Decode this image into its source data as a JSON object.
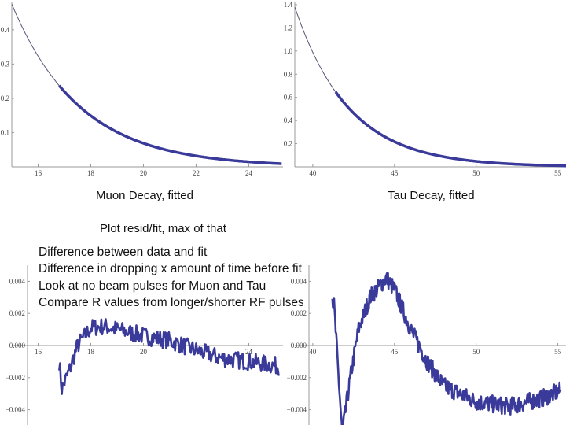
{
  "captions": {
    "muon": "Muon Decay, fitted",
    "tau": "Tau Decay, fitted",
    "plot_note": "Plot resid/fit, max of that"
  },
  "notes": [
    "Difference between data and fit",
    "Difference in dropping x amount of time before fit",
    "Look at no beam pulses for Muon and Tau",
    "Compare R values from longer/shorter RF pulses"
  ],
  "colors": {
    "data": "#3a3a9a",
    "fit": "#555577",
    "axis": "#999999"
  },
  "chart_data": [
    {
      "type": "line",
      "caption": "Muon Decay, fitted",
      "xlim": [
        15,
        25.3
      ],
      "ylim": [
        0,
        0.48
      ],
      "xticks": [
        "16",
        "18",
        "20",
        "22",
        "24"
      ],
      "xtick_values": [
        16,
        18,
        20,
        22,
        24
      ],
      "yticks": [
        "0.1",
        "0.2",
        "0.3",
        "0.4"
      ],
      "ytick_values": [
        0.1,
        0.2,
        0.3,
        0.4
      ],
      "fit": {
        "amplitude_at_xmin": 0.475,
        "decay_constant": 2.59
      },
      "data_range": [
        16.8,
        25.3
      ]
    },
    {
      "type": "line",
      "caption": "Tau Decay, fitted",
      "xlim": [
        38.9,
        55.5
      ],
      "ylim": [
        0,
        1.42
      ],
      "xticks": [
        "40",
        "45",
        "50",
        "55"
      ],
      "xtick_values": [
        40,
        45,
        50,
        55
      ],
      "yticks": [
        "0.2",
        "0.4",
        "0.6",
        "0.8",
        "1.0",
        "1.2",
        "1.4"
      ],
      "ytick_values": [
        0.2,
        0.4,
        0.6,
        0.8,
        1.0,
        1.2,
        1.4
      ],
      "fit": {
        "amplitude_at_xmin": 1.38,
        "decay_constant": 3.3
      },
      "data_range": [
        41.4,
        55.5
      ]
    },
    {
      "type": "line",
      "xlim": [
        15,
        25.3
      ],
      "ylim": [
        -0.005,
        0.005
      ],
      "xticks": [
        "16",
        "18",
        "20",
        "22",
        "24"
      ],
      "xtick_values": [
        16,
        18,
        20,
        22,
        24
      ],
      "yticks": [
        "0.004",
        "0.002",
        "0.000",
        "−0.002",
        "−0.004"
      ],
      "ytick_values": [
        0.004,
        0.002,
        0,
        -0.002,
        -0.004
      ],
      "series": [
        {
          "x": [
            16.8,
            16.9,
            17.2,
            17.5,
            18,
            18.5,
            19,
            20,
            21,
            22,
            23,
            24,
            25.2
          ],
          "y": [
            -0.001,
            -0.0027,
            -0.0015,
            0.0,
            0.0011,
            0.0012,
            0.001,
            0.0006,
            0.0003,
            -0.0003,
            -0.0008,
            -0.001,
            -0.0013
          ]
        }
      ]
    },
    {
      "type": "line",
      "xlim": [
        38.9,
        55.5
      ],
      "ylim": [
        -0.005,
        0.005
      ],
      "xticks": [
        "40",
        "45",
        "50",
        "55"
      ],
      "xtick_values": [
        40,
        45,
        50,
        55
      ],
      "yticks": [
        "0.004",
        "0.002",
        "0.000",
        "−0.002",
        "−0.004"
      ],
      "ytick_values": [
        0.004,
        0.002,
        0,
        -0.002,
        -0.004
      ],
      "series": [
        {
          "x": [
            41.2,
            41.3,
            41.8,
            42.3,
            42.8,
            43.5,
            44.5,
            45,
            46,
            47,
            48,
            50,
            52,
            54,
            55.2
          ],
          "y": [
            0.003,
            0.0025,
            -0.0055,
            -0.002,
            0.001,
            0.003,
            0.0042,
            0.0035,
            0.001,
            -0.001,
            -0.0025,
            -0.0035,
            -0.0038,
            -0.0033,
            -0.0028
          ]
        }
      ]
    }
  ]
}
